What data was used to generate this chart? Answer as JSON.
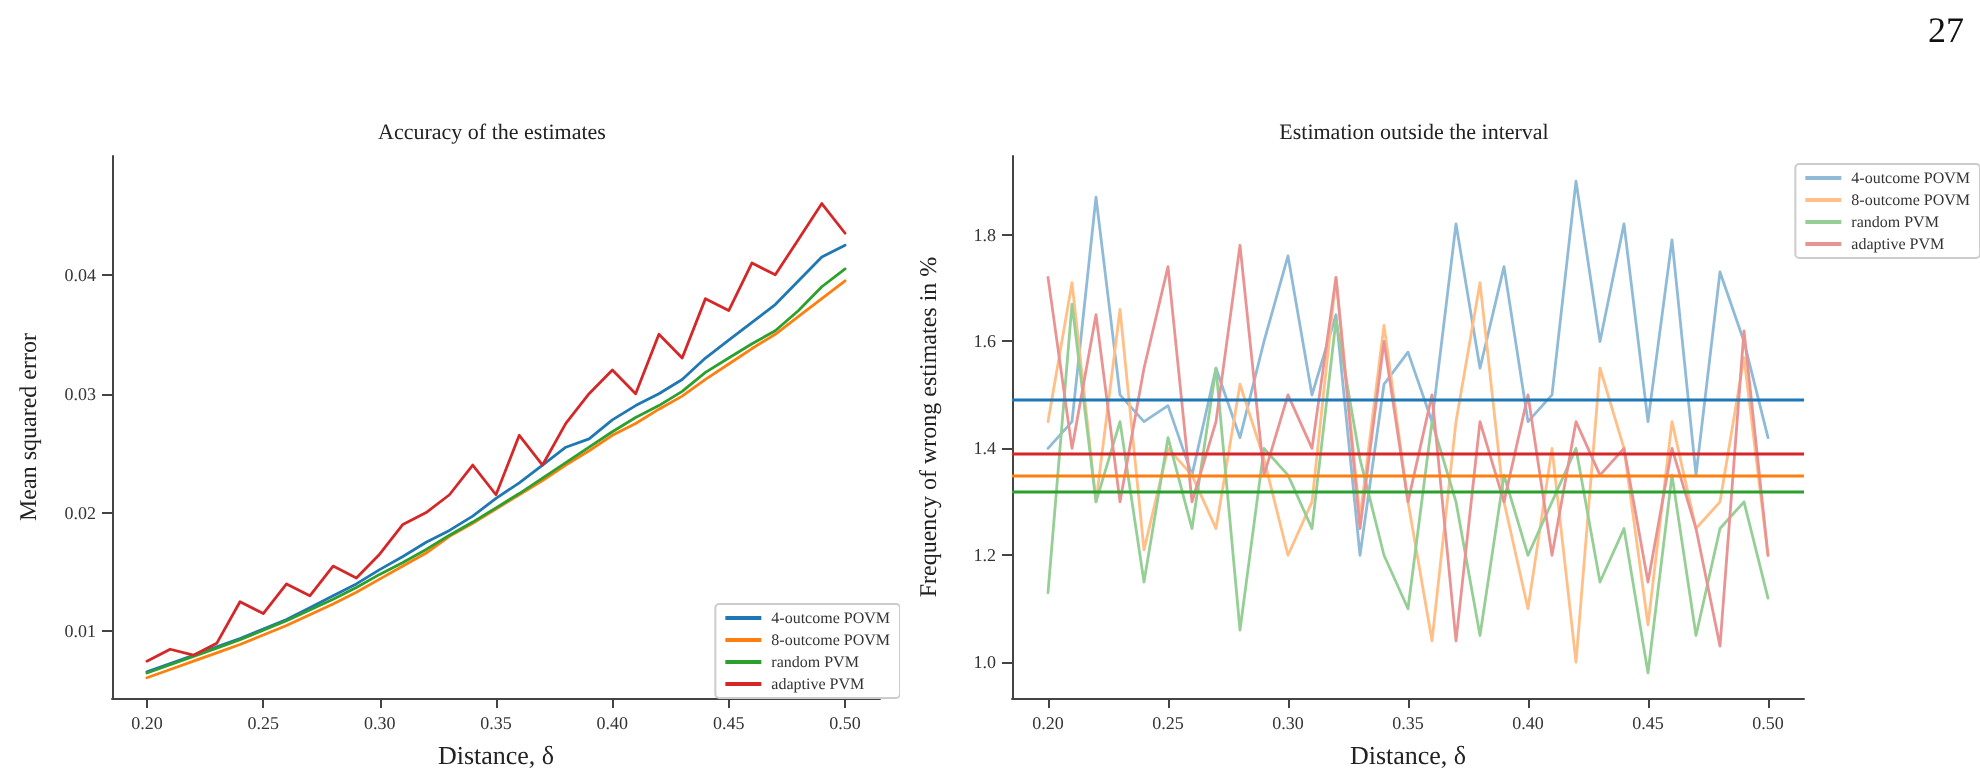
{
  "chart_data": [
    {
      "type": "line",
      "title": "Accuracy of the estimates",
      "xlabel": "Distance, δ",
      "ylabel": "Mean squared error",
      "legend": "bottom right",
      "grid": false,
      "marker": "none",
      "line_style": "solid",
      "x": [
        0.2,
        0.21,
        0.22,
        0.23,
        0.24,
        0.25,
        0.26,
        0.27,
        0.28,
        0.29,
        0.3,
        0.31,
        0.32,
        0.33,
        0.34,
        0.35,
        0.36,
        0.37,
        0.38,
        0.39,
        0.4,
        0.41,
        0.42,
        0.43,
        0.44,
        0.45,
        0.46,
        0.47,
        0.48,
        0.49,
        0.5
      ],
      "xlim": [
        0.185,
        0.515
      ],
      "xticks": [
        {
          "value": 0.2,
          "label": "0.20"
        },
        {
          "value": 0.25,
          "label": "0.25"
        },
        {
          "value": 0.3,
          "label": "0.30"
        },
        {
          "value": 0.35,
          "label": "0.35"
        },
        {
          "value": 0.4,
          "label": "0.40"
        },
        {
          "value": 0.45,
          "label": "0.45"
        },
        {
          "value": 0.5,
          "label": "0.50"
        }
      ],
      "ylim": [
        0.0044,
        0.05
      ],
      "yticks": [
        0.01,
        0.02,
        0.03,
        0.04
      ],
      "series": [
        {
          "name": "4-outcome POVM",
          "color": "#1f77b4",
          "values": [
            0.0066,
            0.0073,
            0.008,
            0.0087,
            0.0094,
            0.0102,
            0.011,
            0.012,
            0.013,
            0.014,
            0.0152,
            0.0163,
            0.0175,
            0.0185,
            0.0197,
            0.0212,
            0.0225,
            0.024,
            0.0255,
            0.0262,
            0.0278,
            0.029,
            0.03,
            0.0312,
            0.033,
            0.0345,
            0.036,
            0.0375,
            0.0395,
            0.0415,
            0.0425
          ]
        },
        {
          "name": "8-outcome POVM",
          "color": "#ff7f0e",
          "values": [
            0.0061,
            0.0068,
            0.0075,
            0.0082,
            0.0089,
            0.0097,
            0.0105,
            0.0114,
            0.0123,
            0.0133,
            0.0144,
            0.0155,
            0.0166,
            0.018,
            0.0191,
            0.0203,
            0.0215,
            0.0227,
            0.024,
            0.0252,
            0.0265,
            0.0275,
            0.0287,
            0.0298,
            0.0312,
            0.0325,
            0.0338,
            0.035,
            0.0365,
            0.038,
            0.0395
          ]
        },
        {
          "name": "random PVM",
          "color": "#2ca02c",
          "values": [
            0.0065,
            0.0072,
            0.0079,
            0.0086,
            0.0093,
            0.0101,
            0.0109,
            0.0118,
            0.0127,
            0.0137,
            0.0148,
            0.0158,
            0.0169,
            0.0181,
            0.0192,
            0.0204,
            0.0216,
            0.0229,
            0.0242,
            0.0255,
            0.0268,
            0.028,
            0.029,
            0.0302,
            0.0318,
            0.033,
            0.0342,
            0.0353,
            0.037,
            0.039,
            0.0405
          ]
        },
        {
          "name": "adaptive PVM",
          "color": "#d62728",
          "values": [
            0.0075,
            0.0085,
            0.008,
            0.009,
            0.0125,
            0.0115,
            0.014,
            0.013,
            0.0155,
            0.0145,
            0.0165,
            0.019,
            0.02,
            0.0215,
            0.024,
            0.0215,
            0.0265,
            0.024,
            0.0275,
            0.03,
            0.032,
            0.03,
            0.035,
            0.033,
            0.038,
            0.037,
            0.041,
            0.04,
            0.043,
            0.046,
            0.0435
          ]
        }
      ]
    },
    {
      "type": "line",
      "title": "Estimation outside the interval",
      "xlabel": "Distance, δ",
      "ylabel": "Frequency of wrong estimates in %",
      "legend": "top right",
      "grid": false,
      "marker": "none",
      "line_style": "solid",
      "annotations": [
        "27"
      ],
      "x": [
        0.2,
        0.21,
        0.22,
        0.23,
        0.24,
        0.25,
        0.26,
        0.27,
        0.28,
        0.29,
        0.3,
        0.31,
        0.32,
        0.33,
        0.34,
        0.35,
        0.36,
        0.37,
        0.38,
        0.39,
        0.4,
        0.41,
        0.42,
        0.43,
        0.44,
        0.45,
        0.46,
        0.47,
        0.48,
        0.49,
        0.5
      ],
      "xlim": [
        0.185,
        0.515
      ],
      "xticks": [
        {
          "value": 0.2,
          "label": "0.20"
        },
        {
          "value": 0.25,
          "label": "0.25"
        },
        {
          "value": 0.3,
          "label": "0.30"
        },
        {
          "value": 0.35,
          "label": "0.35"
        },
        {
          "value": 0.4,
          "label": "0.40"
        },
        {
          "value": 0.45,
          "label": "0.45"
        },
        {
          "value": 0.5,
          "label": "0.50"
        }
      ],
      "ylim": [
        0.933,
        1.947
      ],
      "yticks": [
        {
          "value": 1.0,
          "label": "1.0"
        },
        {
          "value": 1.2,
          "label": "1.2"
        },
        {
          "value": 1.4,
          "label": "1.4"
        },
        {
          "value": 1.6,
          "label": "1.6"
        },
        {
          "value": 1.8,
          "label": "1.8"
        }
      ],
      "series": [
        {
          "name": "4-outcome POVM",
          "color": "#8fbbd9",
          "values": [
            1.4,
            1.45,
            1.87,
            1.5,
            1.45,
            1.48,
            1.35,
            1.55,
            1.42,
            1.6,
            1.76,
            1.5,
            1.65,
            1.2,
            1.52,
            1.58,
            1.45,
            1.82,
            1.55,
            1.74,
            1.45,
            1.5,
            1.9,
            1.6,
            1.82,
            1.45,
            1.79,
            1.35,
            1.73,
            1.6,
            1.42
          ]
        },
        {
          "name": "8-outcome POVM",
          "color": "#ffbf86",
          "values": [
            1.45,
            1.71,
            1.3,
            1.66,
            1.21,
            1.4,
            1.35,
            1.25,
            1.52,
            1.38,
            1.2,
            1.3,
            1.72,
            1.27,
            1.63,
            1.3,
            1.04,
            1.45,
            1.71,
            1.3,
            1.1,
            1.4,
            1.0,
            1.55,
            1.4,
            1.07,
            1.45,
            1.25,
            1.3,
            1.57,
            1.2
          ]
        },
        {
          "name": "random PVM",
          "color": "#95cf95",
          "values": [
            1.13,
            1.67,
            1.3,
            1.45,
            1.15,
            1.42,
            1.25,
            1.55,
            1.06,
            1.4,
            1.35,
            1.25,
            1.64,
            1.38,
            1.2,
            1.1,
            1.45,
            1.3,
            1.05,
            1.35,
            1.2,
            1.3,
            1.4,
            1.15,
            1.25,
            0.98,
            1.35,
            1.05,
            1.25,
            1.3,
            1.12
          ]
        },
        {
          "name": "adaptive PVM",
          "color": "#ea9393",
          "values": [
            1.72,
            1.4,
            1.65,
            1.3,
            1.55,
            1.74,
            1.3,
            1.45,
            1.78,
            1.35,
            1.5,
            1.4,
            1.72,
            1.25,
            1.6,
            1.3,
            1.5,
            1.04,
            1.45,
            1.3,
            1.5,
            1.2,
            1.45,
            1.35,
            1.4,
            1.15,
            1.4,
            1.25,
            1.03,
            1.62,
            1.2
          ]
        }
      ],
      "ref_lines": [
        {
          "axis": "y",
          "value": 1.49,
          "color": "#1f77b4"
        },
        {
          "axis": "y",
          "value": 1.39,
          "color": "#d62728"
        },
        {
          "axis": "y",
          "value": 1.35,
          "color": "#ff7f0e"
        },
        {
          "axis": "y",
          "value": 1.323,
          "color": "#2ca02c"
        }
      ]
    }
  ]
}
